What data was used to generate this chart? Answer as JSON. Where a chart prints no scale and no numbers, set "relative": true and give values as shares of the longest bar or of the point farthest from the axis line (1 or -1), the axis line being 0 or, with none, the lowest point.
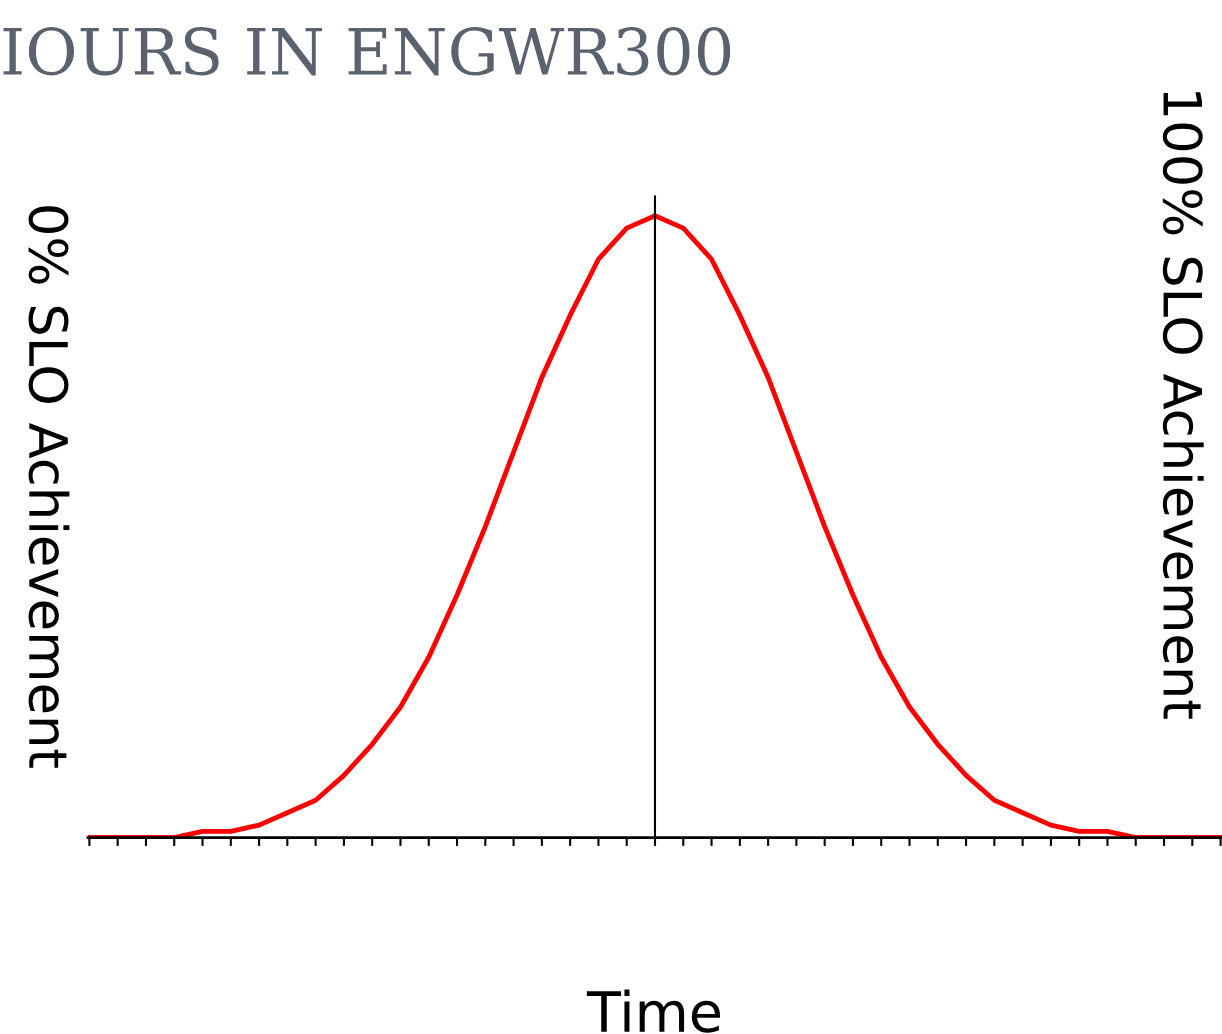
{
  "chart_data": {
    "type": "line",
    "title": "IOURS IN ENGWR300",
    "ylabel": "0% SLO Achievement",
    "y2label": "100% SLO Achievement",
    "xlabel": "Time",
    "relative": true,
    "categories": [
      null,
      null,
      null,
      null,
      null,
      null,
      null,
      null,
      null,
      null,
      null,
      null,
      null,
      null,
      null,
      null,
      null,
      null,
      null,
      null,
      null,
      null,
      null,
      null,
      null,
      null,
      null,
      null,
      null,
      null,
      null,
      null,
      null,
      null,
      null,
      null,
      null,
      null,
      null,
      null,
      null
    ],
    "series": [
      {
        "color": "#ff0000",
        "values": [
          0,
          0,
          0,
          0,
          0.01,
          0.01,
          0.02,
          0.04,
          0.06,
          0.1,
          0.15,
          0.21,
          0.29,
          0.39,
          0.5,
          0.62,
          0.74,
          0.84,
          0.93,
          0.98,
          1.0,
          0.98,
          0.93,
          0.84,
          0.74,
          0.62,
          0.5,
          0.39,
          0.29,
          0.21,
          0.15,
          0.1,
          0.06,
          0.04,
          0.02,
          0.01,
          0.01,
          0,
          0,
          0,
          0
        ]
      }
    ],
    "grid": false,
    "legend": false,
    "marker": "none",
    "line_style": "solid"
  }
}
